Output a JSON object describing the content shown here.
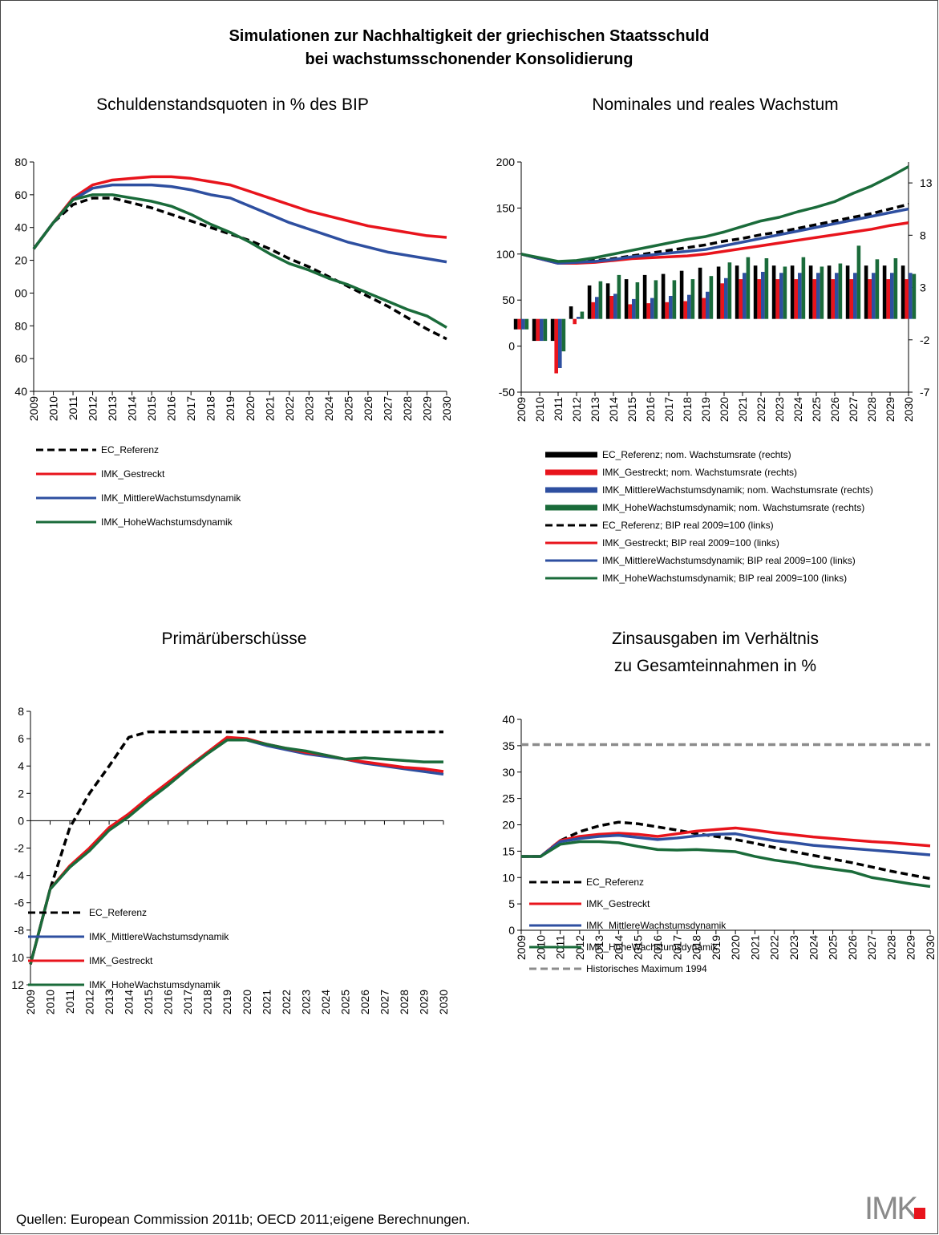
{
  "title": [
    "Simulationen zur Nachhaltigkeit der griechischen Staatsschuld",
    "bei wachstumsschonender Konsolidierung"
  ],
  "source": "Quellen: European Commission 2011b; OECD 2011;eigene Berechnungen.",
  "logo": "IMK",
  "chart_data": [
    {
      "type": "line",
      "title": [
        "Schuldenstandsquoten in % des BIP"
      ],
      "categories": [
        "2009",
        "2010",
        "2011",
        "2012",
        "2013",
        "2014",
        "2015",
        "2016",
        "2017",
        "2018",
        "2019",
        "2020",
        "2021",
        "2022",
        "2023",
        "2024",
        "2025",
        "2026",
        "2027",
        "2028",
        "2029",
        "2030"
      ],
      "ylim": [
        40,
        180
      ],
      "yticks": [
        {
          "value": 180,
          "label": "80"
        },
        {
          "value": 160,
          "label": "60"
        },
        {
          "value": 140,
          "label": "40"
        },
        {
          "value": 120,
          "label": "20"
        },
        {
          "value": 100,
          "label": "00"
        },
        80,
        60,
        40
      ],
      "series": [
        {
          "name": "EC_Referenz",
          "color": "#000000",
          "dashed": true,
          "values": [
            127,
            143,
            154,
            158,
            158,
            155,
            152,
            148,
            144,
            140,
            136,
            132,
            127,
            121,
            116,
            110,
            104,
            98,
            92,
            85,
            78,
            72
          ]
        },
        {
          "name": "IMK_Gestreckt",
          "color": "#e8141c",
          "values": [
            127,
            143,
            158,
            166,
            169,
            170,
            171,
            171,
            170,
            168,
            166,
            162,
            158,
            154,
            150,
            147,
            144,
            141,
            139,
            137,
            135,
            134
          ]
        },
        {
          "name": "IMK_MittlereWachstumsdynamik",
          "color": "#2e4fa0",
          "values": [
            127,
            143,
            157,
            164,
            166,
            166,
            166,
            165,
            163,
            160,
            158,
            153,
            148,
            143,
            139,
            135,
            131,
            128,
            125,
            123,
            121,
            119
          ]
        },
        {
          "name": "IMK_HoheWachstumsdynamik",
          "color": "#1a6b3a",
          "values": [
            127,
            143,
            157,
            160,
            160,
            158,
            156,
            153,
            148,
            142,
            137,
            131,
            124,
            118,
            114,
            109,
            105,
            100,
            95,
            90,
            86,
            79
          ]
        }
      ]
    },
    {
      "type": "combo",
      "title": [
        "Nominales und reales Wachstum"
      ],
      "categories": [
        "2009",
        "2010",
        "2011",
        "2012",
        "2013",
        "2014",
        "2015",
        "2016",
        "2017",
        "2018",
        "2019",
        "2020",
        "2021",
        "2022",
        "2023",
        "2024",
        "2025",
        "2026",
        "2027",
        "2028",
        "2029",
        "2030"
      ],
      "ylim": [
        -50,
        200
      ],
      "yticks": [
        -50,
        0,
        50,
        100,
        150,
        200
      ],
      "y2lim": [
        -7,
        15
      ],
      "y2ticks": [
        -7,
        -2,
        3,
        8,
        13
      ],
      "series": [
        {
          "name": "EC_Referenz; nom. Wachstumsrate (rechts)",
          "color": "#000000",
          "kind": "bar",
          "axis": "y2",
          "values": [
            -1,
            -2.1,
            -2.1,
            1.2,
            3.2,
            3.4,
            3.8,
            4.2,
            4.3,
            4.6,
            4.9,
            5.0,
            5.1,
            5.1,
            5.1,
            5.1,
            5.1,
            5.1,
            5.1,
            5.1,
            5.1,
            5.1
          ]
        },
        {
          "name": "IMK_Gestreckt; nom. Wachstumsrate (rechts)",
          "color": "#e8141c",
          "kind": "bar",
          "axis": "y2",
          "values": [
            -1,
            -2.1,
            -5.2,
            -0.5,
            1.6,
            2.2,
            1.4,
            1.5,
            1.6,
            1.7,
            2.0,
            3.4,
            3.8,
            3.8,
            3.8,
            3.8,
            3.8,
            3.8,
            3.8,
            3.8,
            3.8,
            3.8
          ]
        },
        {
          "name": "IMK_MittlereWachstumsdynamik; nom. Wachstumsrate (rechts)",
          "color": "#2e4fa0",
          "kind": "bar",
          "axis": "y2",
          "values": [
            -1,
            -2.1,
            -4.7,
            0.2,
            2.1,
            2.4,
            1.9,
            2.0,
            2.2,
            2.3,
            2.6,
            3.9,
            4.4,
            4.5,
            4.4,
            4.4,
            4.4,
            4.4,
            4.4,
            4.4,
            4.4,
            4.4
          ]
        },
        {
          "name": "IMK_HoheWachstumsdynamik; nom. Wachstumsrate (rechts)",
          "color": "#1a6b3a",
          "kind": "bar",
          "axis": "y2",
          "values": [
            -1,
            -2.1,
            -3.1,
            0.7,
            3.6,
            4.2,
            3.5,
            3.7,
            3.7,
            3.8,
            4.1,
            5.4,
            5.9,
            5.8,
            5.0,
            5.9,
            5.0,
            5.3,
            7.0,
            5.7,
            5.8,
            4.3
          ]
        },
        {
          "name": "EC_Referenz; BIP real 2009=100 (links)",
          "color": "#000000",
          "dashed": true,
          "values": [
            100,
            95,
            91,
            92,
            93,
            95,
            98,
            101,
            104,
            107,
            110,
            114,
            117,
            121,
            124,
            128,
            132,
            136,
            140,
            144,
            149,
            154
          ]
        },
        {
          "name": "IMK_Gestreckt; BIP real 2009=100 (links)",
          "color": "#e8141c",
          "values": [
            100,
            95,
            90,
            90,
            91,
            93,
            95,
            96,
            97,
            98,
            100,
            103,
            106,
            109,
            112,
            115,
            118,
            121,
            124,
            127,
            131,
            134
          ]
        },
        {
          "name": "IMK_MittlereWachstumsdynamik; BIP real 2009=100 (links)",
          "color": "#2e4fa0",
          "values": [
            100,
            95,
            90,
            91,
            92,
            94,
            97,
            99,
            101,
            103,
            105,
            109,
            113,
            117,
            121,
            125,
            129,
            133,
            137,
            141,
            145,
            149
          ]
        },
        {
          "name": "IMK_HoheWachstumsdynamik; BIP real 2009=100 (links)",
          "color": "#1a6b3a",
          "values": [
            100,
            96,
            92,
            93,
            96,
            100,
            104,
            108,
            112,
            116,
            119,
            124,
            130,
            136,
            140,
            146,
            151,
            157,
            166,
            174,
            184,
            195
          ]
        }
      ]
    },
    {
      "type": "line",
      "title": [
        "Primärüberschüsse"
      ],
      "categories": [
        "2009",
        "2010",
        "2011",
        "2012",
        "2013",
        "2014",
        "2015",
        "2016",
        "2017",
        "2018",
        "2019",
        "2020",
        "2021",
        "2022",
        "2023",
        "2024",
        "2025",
        "2026",
        "2027",
        "2028",
        "2029",
        "2030"
      ],
      "ylim": [
        -12,
        8
      ],
      "yticks": [
        8,
        6,
        4,
        2,
        0,
        -2,
        -4,
        -6,
        -8,
        {
          "value": -10,
          "label": "10"
        },
        {
          "value": -12,
          "label": "12"
        }
      ],
      "series": [
        {
          "name": "EC_Referenz",
          "color": "#000000",
          "dashed": true,
          "values": [
            -10.5,
            -5,
            -0.5,
            2,
            4,
            6.1,
            6.5,
            6.5,
            6.5,
            6.5,
            6.5,
            6.5,
            6.5,
            6.5,
            6.5,
            6.5,
            6.5,
            6.5,
            6.5,
            6.5,
            6.5,
            6.5
          ]
        },
        {
          "name": "IMK_MittlereWachstumsdynamik",
          "color": "#2e4fa0",
          "values": [
            -10.5,
            -5,
            -3.4,
            -2.1,
            -0.6,
            0.5,
            1.6,
            2.7,
            3.9,
            5.0,
            6.0,
            5.9,
            5.5,
            5.2,
            4.9,
            4.7,
            4.5,
            4.2,
            4.0,
            3.8,
            3.6,
            3.4
          ]
        },
        {
          "name": "IMK_Gestreckt",
          "color": "#e8141c",
          "values": [
            -10.5,
            -5,
            -3.3,
            -2.0,
            -0.5,
            0.5,
            1.7,
            2.8,
            3.9,
            5.0,
            6.1,
            6.0,
            5.6,
            5.3,
            5.0,
            4.8,
            4.5,
            4.3,
            4.1,
            3.9,
            3.8,
            3.6
          ]
        },
        {
          "name": "IMK_HoheWachstumsdynamik",
          "color": "#1a6b3a",
          "values": [
            -10.5,
            -5,
            -3.4,
            -2.2,
            -0.7,
            0.3,
            1.5,
            2.6,
            3.8,
            4.9,
            5.9,
            5.9,
            5.6,
            5.3,
            5.1,
            4.8,
            4.5,
            4.6,
            4.5,
            4.4,
            4.3,
            4.3
          ]
        }
      ]
    },
    {
      "type": "line",
      "title": [
        "Zinsausgaben im Verhältnis",
        "zu Gesamteinnahmen in %"
      ],
      "categories": [
        "2009",
        "2010",
        "2011",
        "2012",
        "2013",
        "2014",
        "2015",
        "2016",
        "2017",
        "2018",
        "2019",
        "2020",
        "2021",
        "2022",
        "2023",
        "2024",
        "2025",
        "2026",
        "2027",
        "2028",
        "2029",
        "2030"
      ],
      "ylim": [
        0,
        40
      ],
      "yticks": [
        0,
        5,
        10,
        15,
        20,
        25,
        30,
        35,
        40
      ],
      "series": [
        {
          "name": "EC_Referenz",
          "color": "#000000",
          "dashed": true,
          "values": [
            14,
            14,
            17,
            18.7,
            19.8,
            20.5,
            20.2,
            19.6,
            19,
            18.3,
            17.8,
            17.2,
            16.5,
            15.7,
            14.9,
            14.2,
            13.5,
            12.8,
            12,
            11.2,
            10.5,
            9.8
          ]
        },
        {
          "name": "IMK_Gestreckt",
          "color": "#e8141c",
          "values": [
            14,
            14,
            17,
            17.8,
            18.2,
            18.4,
            18.2,
            17.8,
            18.3,
            18.8,
            19.1,
            19.4,
            19.0,
            18.5,
            18.1,
            17.7,
            17.4,
            17.1,
            16.8,
            16.6,
            16.3,
            16.0
          ]
        },
        {
          "name": "IMK_MittlereWachstumsdynamik",
          "color": "#2e4fa0",
          "values": [
            14,
            14,
            16.8,
            17.4,
            17.8,
            18.0,
            17.6,
            17.2,
            17.5,
            17.9,
            18.2,
            18.3,
            17.6,
            17.0,
            16.6,
            16.1,
            15.8,
            15.5,
            15.2,
            14.9,
            14.6,
            14.3
          ]
        },
        {
          "name": "IMK_HoheWachstumsdynamik",
          "color": "#1a6b3a",
          "values": [
            14,
            14,
            16.3,
            16.8,
            16.8,
            16.6,
            15.9,
            15.3,
            15.2,
            15.3,
            15.1,
            14.9,
            14.0,
            13.3,
            12.8,
            12.1,
            11.6,
            11.1,
            10.0,
            9.4,
            8.8,
            8.3
          ]
        },
        {
          "name": "Historisches Maximum 1994",
          "color": "#8c8c8c",
          "dashed": true,
          "values": [
            35.2,
            35.2,
            35.2,
            35.2,
            35.2,
            35.2,
            35.2,
            35.2,
            35.2,
            35.2,
            35.2,
            35.2,
            35.2,
            35.2,
            35.2,
            35.2,
            35.2,
            35.2,
            35.2,
            35.2,
            35.2,
            35.2
          ]
        }
      ]
    }
  ]
}
